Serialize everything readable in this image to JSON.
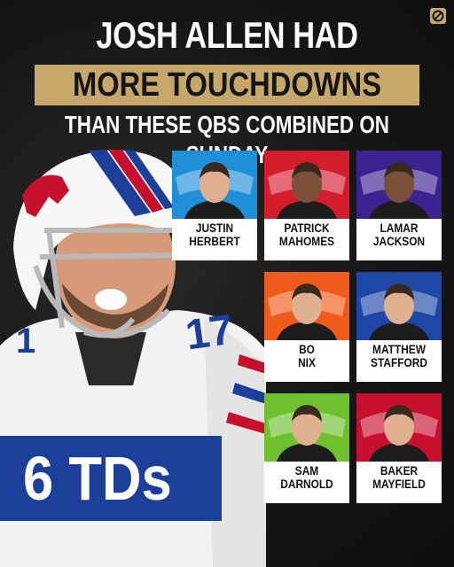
{
  "headline": {
    "line1": "JOSH ALLEN HAD",
    "line2": "MORE TOUCHDOWNS",
    "line3": "THAN THESE QBS COMBINED ON SUNDAY"
  },
  "stat": "6 TDs",
  "player_jersey_number": "17",
  "colors": {
    "gold_band": "#c6a96a",
    "stat_box": "#1c3f9a",
    "background": "#161616"
  },
  "qbs": [
    {
      "first": "JUSTIN",
      "last": "HERBERT",
      "bg": "#1f8fd8",
      "logo": "chargers-logo"
    },
    {
      "first": "PATRICK",
      "last": "MAHOMES",
      "bg": "#d31c2c",
      "logo": "chiefs-logo"
    },
    {
      "first": "LAMAR",
      "last": "JACKSON",
      "bg": "#3a2290",
      "logo": "ravens-logo"
    },
    {
      "first": "BO",
      "last": "NIX",
      "bg": "#f05a1a",
      "logo": "broncos-logo"
    },
    {
      "first": "MATTHEW",
      "last": "STAFFORD",
      "bg": "#1e47a8",
      "logo": "rams-logo"
    },
    {
      "first": "SAM",
      "last": "DARNOLD",
      "bg": "#6ec02e",
      "logo": "seahawks-logo"
    },
    {
      "first": "BAKER",
      "last": "MAYFIELD",
      "bg": "#c8102e",
      "logo": "buccaneers-logo"
    }
  ]
}
